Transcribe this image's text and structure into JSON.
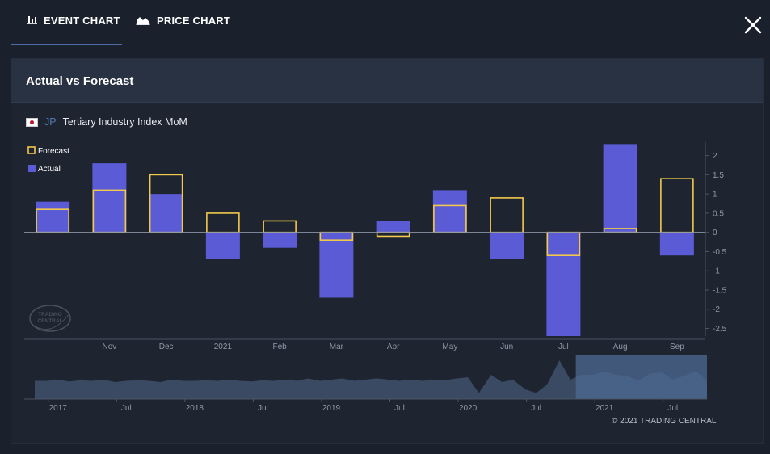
{
  "tabs": [
    {
      "label": "EVENT CHART",
      "icon": "bar-chart-icon",
      "active": true
    },
    {
      "label": "PRICE CHART",
      "icon": "area-chart-icon",
      "active": false
    }
  ],
  "panel": {
    "title": "Actual vs Forecast",
    "country": "JP",
    "indicator": "Tertiary Industry Index MoM"
  },
  "copyright": "© 2021 TRADING CENTRAL",
  "watermark": "TRADING CENTRAL",
  "colors": {
    "actual": "#5b5bd6",
    "forecast": "#f2c94c",
    "navigator_fill": "#3a4a63",
    "navigator_selection": "#4e6a93"
  },
  "chart_data": [
    {
      "type": "bar",
      "title": "",
      "legend": [
        "Forecast",
        "Actual"
      ],
      "legend_position": "top-left",
      "categories": [
        "",
        "Nov",
        "Dec",
        "2021",
        "Feb",
        "Mar",
        "Apr",
        "May",
        "Jun",
        "Jul",
        "Aug",
        "Sep"
      ],
      "series": [
        {
          "name": "Actual",
          "values": [
            0.8,
            1.8,
            1.0,
            -0.7,
            -0.4,
            -1.7,
            0.3,
            1.1,
            -0.7,
            -2.7,
            2.3,
            -0.6
          ]
        },
        {
          "name": "Forecast",
          "values": [
            0.6,
            1.1,
            1.5,
            0.5,
            0.3,
            -0.2,
            -0.1,
            0.7,
            0.9,
            -0.6,
            0.1,
            1.4
          ]
        }
      ],
      "ylim": [
        -2.7,
        2.35
      ],
      "yticks": [
        "2",
        "1.5",
        "1",
        "0.5",
        "0",
        "-0.5",
        "-1",
        "-1.5",
        "-2",
        "-2.5"
      ],
      "ytick_values": [
        2,
        1.5,
        1,
        0.5,
        0,
        -0.5,
        -1,
        -1.5,
        -2,
        -2.5
      ],
      "y_axis_side": "right",
      "grid": false
    },
    {
      "type": "area",
      "title": "",
      "x_labels": [
        "2017",
        "Jul",
        "2018",
        "Jul",
        "2019",
        "Jul",
        "2020",
        "Jul",
        "2021",
        "Jul"
      ],
      "x_label_values": [
        2017.0,
        2017.5,
        2018.0,
        2018.5,
        2019.0,
        2019.5,
        2020.0,
        2020.5,
        2021.0,
        2021.5
      ],
      "xlim": [
        2016.83,
        2021.75
      ],
      "x": [
        2016.83,
        2016.92,
        2017.0,
        2017.08,
        2017.17,
        2017.25,
        2017.33,
        2017.42,
        2017.5,
        2017.58,
        2017.67,
        2017.75,
        2017.83,
        2017.92,
        2018.0,
        2018.08,
        2018.17,
        2018.25,
        2018.33,
        2018.42,
        2018.5,
        2018.58,
        2018.67,
        2018.75,
        2018.83,
        2018.92,
        2019.0,
        2019.08,
        2019.17,
        2019.25,
        2019.33,
        2019.42,
        2019.5,
        2019.58,
        2019.67,
        2019.75,
        2019.83,
        2019.92,
        2020.0,
        2020.08,
        2020.17,
        2020.25,
        2020.33,
        2020.42,
        2020.5,
        2020.58,
        2020.67,
        2020.75,
        2020.83,
        2020.92,
        2021.0,
        2021.08,
        2021.17,
        2021.25,
        2021.33,
        2021.42,
        2021.5,
        2021.58,
        2021.67,
        2021.75
      ],
      "values": [
        0.5,
        0.5,
        0.6,
        0.45,
        0.55,
        0.5,
        0.6,
        0.4,
        0.5,
        0.55,
        0.5,
        0.4,
        0.6,
        0.5,
        0.5,
        0.55,
        0.5,
        0.6,
        0.5,
        0.45,
        0.55,
        0.5,
        0.6,
        0.5,
        0.7,
        0.5,
        0.6,
        0.7,
        0.5,
        0.6,
        0.7,
        0.6,
        0.5,
        0.6,
        0.5,
        0.6,
        0.55,
        0.7,
        0.8,
        -0.5,
        1.0,
        0.4,
        0.6,
        -0.2,
        -0.5,
        0.2,
        2.2,
        0.6,
        1.0,
        1.0,
        1.3,
        1.0,
        0.9,
        0.5,
        1.1,
        1.2,
        0.6,
        0.9,
        1.3,
        0.5
      ],
      "selection": [
        "Oct 2020",
        "Sep 2021"
      ],
      "selection_range": [
        2020.79,
        2021.75
      ]
    }
  ]
}
